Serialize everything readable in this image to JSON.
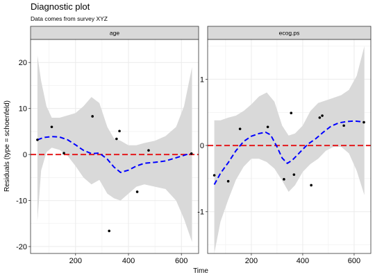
{
  "title": "Diagnostic plot",
  "subtitle": "Data comes from survey XYZ",
  "xlabel": "Time",
  "ylabel": "Residuals (type = schoenfeld)",
  "colors": {
    "smooth": "#0000ff",
    "reference": "#e41a1c",
    "ribbon": "#d9d9d9",
    "strip": "#d9d9d9",
    "grid": "#ebebeb",
    "point": "#000000"
  },
  "chart_data": [
    {
      "type": "scatter",
      "facet": "age",
      "xlim": [
        30,
        665
      ],
      "ylim": [
        -21.5,
        25
      ],
      "xticks": [
        200,
        400,
        600
      ],
      "yticks": [
        -20,
        -10,
        0,
        10,
        20
      ],
      "reference_line": 0,
      "grid": true,
      "points": [
        {
          "x": 56,
          "y": 3.2
        },
        {
          "x": 110,
          "y": 6.0
        },
        {
          "x": 156,
          "y": 0.3
        },
        {
          "x": 264,
          "y": 8.3
        },
        {
          "x": 327,
          "y": -16.6
        },
        {
          "x": 355,
          "y": 3.4
        },
        {
          "x": 366,
          "y": 5.1
        },
        {
          "x": 433,
          "y": -8.1
        },
        {
          "x": 476,
          "y": 0.9
        },
        {
          "x": 638,
          "y": 0.2
        }
      ],
      "smooth": [
        {
          "x": 56,
          "y": 3.2
        },
        {
          "x": 80,
          "y": 3.7
        },
        {
          "x": 110,
          "y": 3.9
        },
        {
          "x": 140,
          "y": 3.8
        },
        {
          "x": 170,
          "y": 3.2
        },
        {
          "x": 200,
          "y": 2.1
        },
        {
          "x": 230,
          "y": 0.9
        },
        {
          "x": 260,
          "y": 0.2
        },
        {
          "x": 290,
          "y": 0.3
        },
        {
          "x": 320,
          "y": -1.0
        },
        {
          "x": 345,
          "y": -2.7
        },
        {
          "x": 370,
          "y": -3.9
        },
        {
          "x": 400,
          "y": -3.4
        },
        {
          "x": 430,
          "y": -2.5
        },
        {
          "x": 460,
          "y": -1.9
        },
        {
          "x": 500,
          "y": -1.7
        },
        {
          "x": 540,
          "y": -1.4
        },
        {
          "x": 580,
          "y": -0.7
        },
        {
          "x": 620,
          "y": 0.0
        },
        {
          "x": 640,
          "y": 0.2
        }
      ],
      "band": [
        {
          "x": 56,
          "lo": -14.5,
          "hi": 21.5
        },
        {
          "x": 70,
          "lo": -3.5,
          "hi": 16
        },
        {
          "x": 90,
          "lo": 0.5,
          "hi": 10.5
        },
        {
          "x": 110,
          "lo": 1.5,
          "hi": 8
        },
        {
          "x": 140,
          "lo": 1.0,
          "hi": 8
        },
        {
          "x": 170,
          "lo": -0.3,
          "hi": 8.5
        },
        {
          "x": 200,
          "lo": -2.5,
          "hi": 9
        },
        {
          "x": 230,
          "lo": -5.0,
          "hi": 10.5
        },
        {
          "x": 260,
          "lo": -6.5,
          "hi": 12.5
        },
        {
          "x": 290,
          "lo": -5.5,
          "hi": 11.2
        },
        {
          "x": 320,
          "lo": -8.5,
          "hi": 6.0
        },
        {
          "x": 345,
          "lo": -9.5,
          "hi": 3.5
        },
        {
          "x": 370,
          "lo": -10.0,
          "hi": 3.0
        },
        {
          "x": 400,
          "lo": -8.5,
          "hi": 2.0
        },
        {
          "x": 430,
          "lo": -7.0,
          "hi": 2.0
        },
        {
          "x": 460,
          "lo": -6.5,
          "hi": 2.5
        },
        {
          "x": 500,
          "lo": -7.0,
          "hi": 3.0
        },
        {
          "x": 540,
          "lo": -7.5,
          "hi": 4.0
        },
        {
          "x": 580,
          "lo": -10.0,
          "hi": 6.0
        },
        {
          "x": 610,
          "lo": -14.0,
          "hi": 10.5
        },
        {
          "x": 640,
          "lo": -19.0,
          "hi": 19.0
        }
      ]
    },
    {
      "type": "scatter",
      "facet": "ecog.ps",
      "xlim": [
        30,
        665
      ],
      "ylim": [
        -1.63,
        1.6
      ],
      "xticks": [
        200,
        400,
        600
      ],
      "yticks": [
        -1,
        0,
        1
      ],
      "reference_line": 0,
      "grid": true,
      "points": [
        {
          "x": 56,
          "y": -0.45
        },
        {
          "x": 110,
          "y": -0.54
        },
        {
          "x": 156,
          "y": 0.25
        },
        {
          "x": 264,
          "y": 0.28
        },
        {
          "x": 327,
          "y": -0.51
        },
        {
          "x": 355,
          "y": 0.49
        },
        {
          "x": 366,
          "y": -0.44
        },
        {
          "x": 433,
          "y": -0.6
        },
        {
          "x": 466,
          "y": 0.42
        },
        {
          "x": 476,
          "y": 0.45
        },
        {
          "x": 560,
          "y": 0.3
        },
        {
          "x": 638,
          "y": 0.35
        }
      ],
      "smooth": [
        {
          "x": 56,
          "y": -0.59
        },
        {
          "x": 80,
          "y": -0.42
        },
        {
          "x": 110,
          "y": -0.26
        },
        {
          "x": 140,
          "y": -0.08
        },
        {
          "x": 170,
          "y": 0.06
        },
        {
          "x": 200,
          "y": 0.14
        },
        {
          "x": 230,
          "y": 0.18
        },
        {
          "x": 255,
          "y": 0.2
        },
        {
          "x": 275,
          "y": 0.16
        },
        {
          "x": 300,
          "y": -0.02
        },
        {
          "x": 320,
          "y": -0.19
        },
        {
          "x": 340,
          "y": -0.27
        },
        {
          "x": 360,
          "y": -0.22
        },
        {
          "x": 390,
          "y": -0.1
        },
        {
          "x": 420,
          "y": 0.02
        },
        {
          "x": 450,
          "y": 0.1
        },
        {
          "x": 480,
          "y": 0.2
        },
        {
          "x": 510,
          "y": 0.29
        },
        {
          "x": 540,
          "y": 0.34
        },
        {
          "x": 570,
          "y": 0.36
        },
        {
          "x": 600,
          "y": 0.37
        },
        {
          "x": 625,
          "y": 0.36
        },
        {
          "x": 640,
          "y": 0.35
        }
      ],
      "band": [
        {
          "x": 56,
          "lo": -1.63,
          "hi": 0.38
        },
        {
          "x": 80,
          "lo": -1.15,
          "hi": 0.38
        },
        {
          "x": 110,
          "lo": -0.82,
          "hi": 0.42
        },
        {
          "x": 140,
          "lo": -0.52,
          "hi": 0.45
        },
        {
          "x": 170,
          "lo": -0.32,
          "hi": 0.52
        },
        {
          "x": 200,
          "lo": -0.2,
          "hi": 0.62
        },
        {
          "x": 230,
          "lo": -0.2,
          "hi": 0.74
        },
        {
          "x": 260,
          "lo": -0.25,
          "hi": 0.8
        },
        {
          "x": 290,
          "lo": -0.35,
          "hi": 0.66
        },
        {
          "x": 320,
          "lo": -0.53,
          "hi": 0.3
        },
        {
          "x": 345,
          "lo": -0.7,
          "hi": 0.15
        },
        {
          "x": 370,
          "lo": -0.6,
          "hi": 0.18
        },
        {
          "x": 400,
          "lo": -0.4,
          "hi": 0.3
        },
        {
          "x": 430,
          "lo": -0.28,
          "hi": 0.52
        },
        {
          "x": 460,
          "lo": -0.2,
          "hi": 0.64
        },
        {
          "x": 490,
          "lo": -0.08,
          "hi": 0.68
        },
        {
          "x": 520,
          "lo": -0.02,
          "hi": 0.72
        },
        {
          "x": 550,
          "lo": -0.02,
          "hi": 0.76
        },
        {
          "x": 580,
          "lo": -0.12,
          "hi": 0.84
        },
        {
          "x": 610,
          "lo": -0.38,
          "hi": 1.05
        },
        {
          "x": 640,
          "lo": -0.75,
          "hi": 1.5
        }
      ]
    }
  ]
}
